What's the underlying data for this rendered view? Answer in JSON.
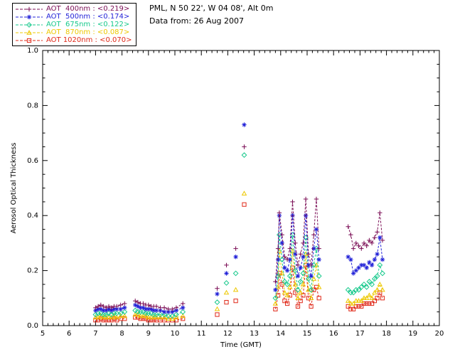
{
  "header": {
    "station_line": "PML, N 50 22', W 04 08', Alt 0m",
    "data_from_line": "Data from: 26 Aug 2007"
  },
  "chart_data": {
    "type": "scatter",
    "title": "",
    "xlabel": "Time (GMT)",
    "ylabel": "Aerosol Optical Thickness",
    "xlim": [
      5,
      20
    ],
    "ylim": [
      0.0,
      1.0
    ],
    "grid": false,
    "legend_position": "top-left",
    "x_ticks": {
      "values": [
        5,
        6,
        7,
        8,
        9,
        10,
        11,
        12,
        13,
        14,
        15,
        16,
        17,
        18,
        19,
        20
      ],
      "labels": [
        "5",
        "6",
        "7",
        "8",
        "9",
        "10",
        "11",
        "12",
        "13",
        "14",
        "15",
        "16",
        "17",
        "18",
        "19",
        "20"
      ]
    },
    "y_ticks": {
      "values": [
        0.0,
        0.2,
        0.4,
        0.6,
        0.8,
        1.0
      ],
      "labels": [
        "0.0",
        "0.2",
        "0.4",
        "0.6",
        "0.8",
        "1.0"
      ]
    },
    "x_minor_step": 0.2,
    "y_minor_step": 0.05,
    "x_major_step": 1,
    "y_major_step": 0.2,
    "line_gap_threshold": 0.3,
    "x": [
      7.0,
      7.1,
      7.2,
      7.3,
      7.4,
      7.5,
      7.6,
      7.7,
      7.8,
      7.95,
      8.1,
      8.5,
      8.6,
      8.7,
      8.8,
      8.9,
      9.0,
      9.1,
      9.2,
      9.3,
      9.45,
      9.6,
      9.75,
      9.9,
      10.05,
      10.3,
      11.6,
      11.95,
      12.3,
      12.62,
      13.8,
      13.9,
      13.95,
      14.05,
      14.15,
      14.25,
      14.35,
      14.45,
      14.55,
      14.65,
      14.75,
      14.85,
      14.95,
      15.05,
      15.15,
      15.25,
      15.35,
      15.45,
      16.55,
      16.65,
      16.75,
      16.85,
      16.95,
      17.05,
      17.15,
      17.25,
      17.35,
      17.45,
      17.55,
      17.65,
      17.75,
      17.85
    ],
    "series": [
      {
        "name": "AOT  400nm",
        "mean_label": "<0.219>",
        "wavelength": "400nm",
        "color": "#7B0E56",
        "marker": "plus",
        "values": [
          0.065,
          0.07,
          0.075,
          0.07,
          0.065,
          0.07,
          0.065,
          0.07,
          0.07,
          0.075,
          0.08,
          0.09,
          0.085,
          0.08,
          0.08,
          0.075,
          0.075,
          0.07,
          0.07,
          0.07,
          0.065,
          0.065,
          0.06,
          0.06,
          0.065,
          0.08,
          0.135,
          0.22,
          0.28,
          0.65,
          0.16,
          0.28,
          0.41,
          0.33,
          0.25,
          0.24,
          0.28,
          0.45,
          0.3,
          0.22,
          0.26,
          0.3,
          0.46,
          0.26,
          0.22,
          0.33,
          0.46,
          0.28,
          0.36,
          0.33,
          0.28,
          0.3,
          0.29,
          0.28,
          0.3,
          0.29,
          0.31,
          0.3,
          0.32,
          0.34,
          0.41,
          0.31
        ]
      },
      {
        "name": "AOT  500nm",
        "mean_label": "<0.174>",
        "wavelength": "500nm",
        "color": "#2424D8",
        "marker": "asterisk",
        "values": [
          0.055,
          0.06,
          0.06,
          0.055,
          0.055,
          0.06,
          0.055,
          0.06,
          0.06,
          0.06,
          0.065,
          0.075,
          0.07,
          0.065,
          0.065,
          0.06,
          0.06,
          0.06,
          0.055,
          0.055,
          0.055,
          0.05,
          0.05,
          0.05,
          0.055,
          0.065,
          0.115,
          0.19,
          0.25,
          0.73,
          0.13,
          0.24,
          0.4,
          0.3,
          0.21,
          0.2,
          0.24,
          0.4,
          0.26,
          0.18,
          0.21,
          0.25,
          0.4,
          0.22,
          0.18,
          0.28,
          0.35,
          0.24,
          0.25,
          0.24,
          0.19,
          0.2,
          0.21,
          0.22,
          0.22,
          0.21,
          0.23,
          0.22,
          0.24,
          0.26,
          0.32,
          0.24
        ]
      },
      {
        "name": "AOT  675nm",
        "mean_label": "<0.122>",
        "wavelength": "675nm",
        "color": "#17C98C",
        "marker": "diamond",
        "values": [
          0.04,
          0.045,
          0.045,
          0.04,
          0.04,
          0.045,
          0.04,
          0.045,
          0.045,
          0.045,
          0.05,
          0.055,
          0.05,
          0.05,
          0.05,
          0.045,
          0.045,
          0.045,
          0.04,
          0.04,
          0.04,
          0.04,
          0.035,
          0.035,
          0.04,
          0.05,
          0.085,
          0.155,
          0.19,
          0.62,
          0.1,
          0.18,
          0.33,
          0.24,
          0.16,
          0.15,
          0.18,
          0.33,
          0.2,
          0.13,
          0.16,
          0.19,
          0.32,
          0.17,
          0.13,
          0.22,
          0.28,
          0.18,
          0.13,
          0.12,
          0.12,
          0.13,
          0.13,
          0.14,
          0.15,
          0.14,
          0.16,
          0.15,
          0.17,
          0.18,
          0.22,
          0.19
        ]
      },
      {
        "name": "AOT  870nm",
        "mean_label": "<0.087>",
        "wavelength": "870nm",
        "color": "#EDC800",
        "marker": "triangle",
        "values": [
          0.03,
          0.03,
          0.035,
          0.03,
          0.03,
          0.03,
          0.03,
          0.035,
          0.03,
          0.035,
          0.035,
          0.04,
          0.04,
          0.035,
          0.035,
          0.035,
          0.03,
          0.03,
          0.03,
          0.03,
          0.03,
          0.03,
          0.025,
          0.025,
          0.03,
          0.035,
          0.06,
          0.12,
          0.13,
          0.48,
          0.08,
          0.14,
          0.27,
          0.19,
          0.12,
          0.11,
          0.14,
          0.27,
          0.15,
          0.1,
          0.12,
          0.15,
          0.26,
          0.13,
          0.1,
          0.17,
          0.22,
          0.14,
          0.09,
          0.08,
          0.08,
          0.09,
          0.09,
          0.09,
          0.1,
          0.1,
          0.11,
          0.1,
          0.12,
          0.13,
          0.15,
          0.13
        ]
      },
      {
        "name": "AOT 1020nm",
        "mean_label": "<0.070>",
        "wavelength": "1020nm",
        "color": "#E02818",
        "marker": "square",
        "values": [
          0.02,
          0.02,
          0.025,
          0.02,
          0.02,
          0.02,
          0.02,
          0.025,
          0.02,
          0.025,
          0.025,
          0.03,
          0.03,
          0.025,
          0.025,
          0.025,
          0.02,
          0.02,
          0.02,
          0.02,
          0.02,
          0.02,
          0.02,
          0.02,
          0.02,
          0.025,
          0.04,
          0.085,
          0.09,
          0.44,
          0.06,
          0.11,
          0.19,
          0.15,
          0.09,
          0.08,
          0.11,
          0.21,
          0.12,
          0.07,
          0.09,
          0.11,
          0.22,
          0.1,
          0.07,
          0.13,
          0.14,
          0.1,
          0.07,
          0.06,
          0.06,
          0.07,
          0.07,
          0.07,
          0.08,
          0.08,
          0.08,
          0.08,
          0.09,
          0.1,
          0.12,
          0.1
        ]
      }
    ]
  }
}
